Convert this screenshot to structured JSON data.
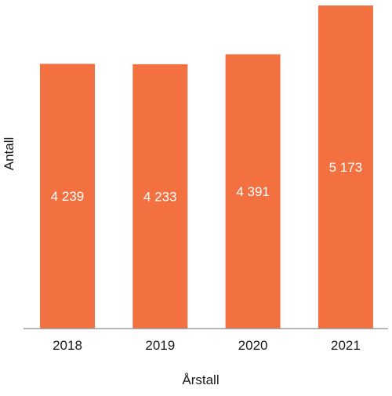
{
  "chart_data": {
    "type": "bar",
    "categories": [
      "2018",
      "2019",
      "2020",
      "2021"
    ],
    "values": [
      4239,
      4233,
      4391,
      5173
    ],
    "value_labels": [
      "4 239",
      "4 233",
      "4 391",
      "5 173"
    ],
    "xlabel": "Årstall",
    "ylabel": "Antall",
    "ylim": [
      0,
      5173
    ],
    "grid": false,
    "bar_color": "#f37140"
  }
}
